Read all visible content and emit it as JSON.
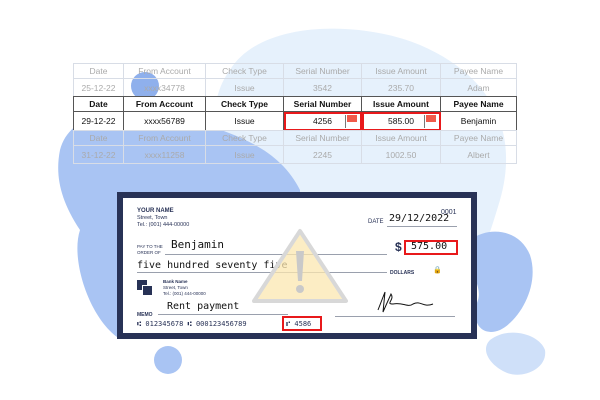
{
  "table": {
    "headers": [
      "Date",
      "From Account",
      "Check Type",
      "Serial Number",
      "Issue Amount",
      "Payee Name"
    ],
    "rows": [
      [
        "25-12-22",
        "xxxx34778",
        "Issue",
        "3542",
        "235.70",
        "Adam"
      ],
      [
        "29-12-22",
        "xxxx56789",
        "Issue",
        "4256",
        "585.00",
        "Benjamin"
      ],
      [
        "31-12-22",
        "xxxx11258",
        "Issue",
        "2245",
        "1002.50",
        "Albert"
      ]
    ],
    "flag_color": "#f05a4a",
    "highlight_color": "#e8191b"
  },
  "check": {
    "owner_name": "YOUR NAME",
    "owner_street": "Street, Town",
    "owner_tel": "Tel.: (001) 444-00000",
    "check_number": "0001",
    "date_label": "DATE",
    "date": "29/12/2022",
    "pay_label_1": "PAY TO THE",
    "pay_label_2": "ORDER OF",
    "payee": "Benjamin",
    "currency": "$",
    "amount": "575.00",
    "amount_words": "five hundred seventy five",
    "dollars_label": "DOLLARS",
    "bank_name": "Bank Name",
    "bank_street": "Street, Town",
    "bank_tel": "Tel.: (001) 444-00000",
    "memo_label": "MEMO",
    "memo": "Rent payment",
    "micr_routing": "⑆ 012345678 ⑆ 000123456789",
    "micr_serial": "⑈ 4586",
    "border_color": "#283256"
  },
  "overlay": {
    "icon": "warning-triangle-icon"
  }
}
